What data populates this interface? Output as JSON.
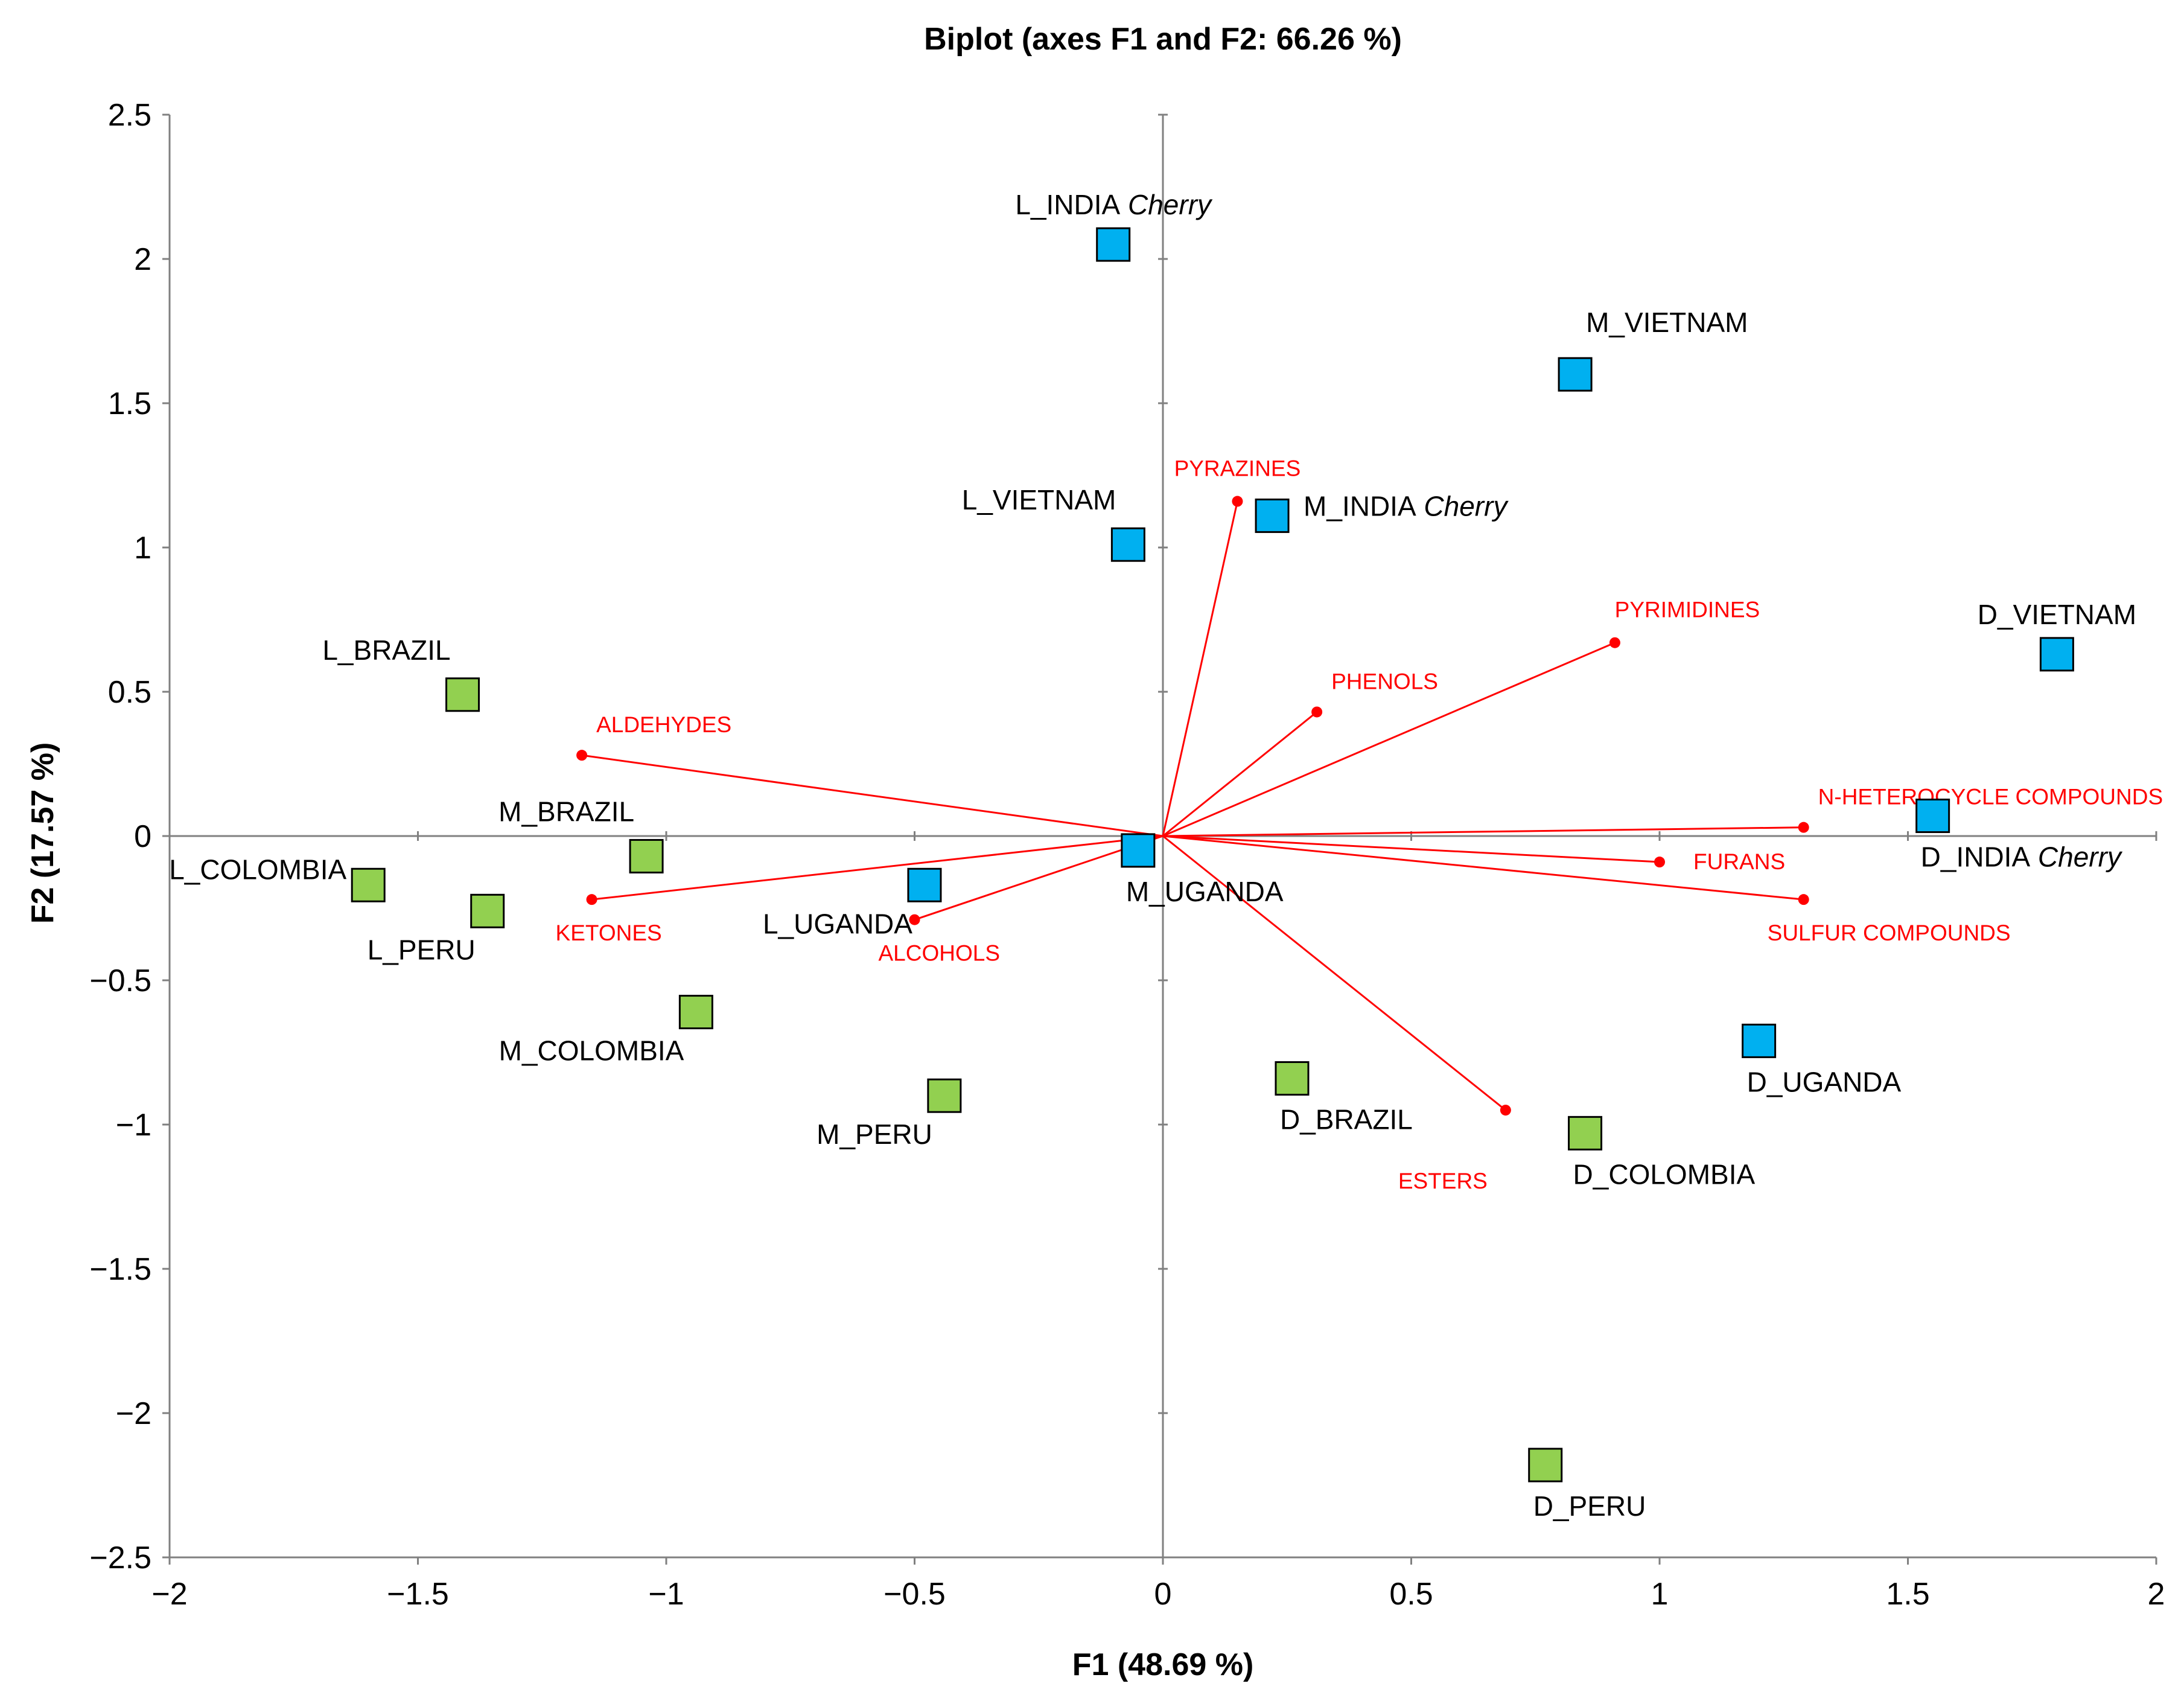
{
  "chart_data": {
    "type": "scatter",
    "title": "Biplot (axes F1 and F2: 66.26 %)",
    "xlabel": "F1 (48.69 %)",
    "ylabel": "F2 (17.57 %)",
    "xlim": [
      -2,
      2
    ],
    "ylim": [
      -2.5,
      2.5
    ],
    "x_ticks": [
      -2,
      -1.5,
      -1,
      -0.5,
      0,
      0.5,
      1,
      1.5,
      2
    ],
    "y_ticks": [
      2.5,
      2,
      1.5,
      1,
      0.5,
      0,
      -0.5,
      -1,
      -1.5,
      -2,
      -2.5
    ],
    "x_tick_labels": [
      "−2",
      "−1.5",
      "−1",
      "−0.5",
      "0",
      "0.5",
      "1",
      "1.5",
      "2"
    ],
    "y_tick_labels": [
      "2.5",
      "2",
      "1.5",
      "1",
      "0.5",
      "0",
      "−0.5",
      "−1",
      "−1.5",
      "−2",
      "−2.5"
    ],
    "grid": false,
    "colors": {
      "robusta": "#00b0f0",
      "arabica": "#92d050",
      "vector": "#ff0000",
      "axis": "#808080"
    },
    "observations": [
      {
        "label": "L_INDIA",
        "label_italic": "Cherry",
        "x": -0.1,
        "y": 2.05,
        "group": "robusta",
        "label_pos": "above"
      },
      {
        "label": "M_VIETNAM",
        "label_italic": "",
        "x": 0.83,
        "y": 1.6,
        "group": "robusta",
        "label_pos": "above-right"
      },
      {
        "label": "L_VIETNAM",
        "label_italic": "",
        "x": -0.07,
        "y": 1.01,
        "group": "robusta",
        "label_pos": "above-left"
      },
      {
        "label": "M_INDIA",
        "label_italic": "Cherry",
        "x": 0.22,
        "y": 1.11,
        "group": "robusta",
        "label_pos": "right"
      },
      {
        "label": "D_VIETNAM",
        "label_italic": "",
        "x": 1.8,
        "y": 0.63,
        "group": "robusta",
        "label_pos": "above"
      },
      {
        "label": "D_INDIA",
        "label_italic": "Cherry",
        "x": 1.55,
        "y": 0.07,
        "group": "robusta",
        "label_pos": "below-right"
      },
      {
        "label": "M_UGANDA",
        "label_italic": "",
        "x": -0.05,
        "y": -0.05,
        "group": "robusta",
        "label_pos": "below-right"
      },
      {
        "label": "L_UGANDA",
        "label_italic": "",
        "x": -0.48,
        "y": -0.17,
        "group": "robusta",
        "label_pos": "below-left"
      },
      {
        "label": "D_UGANDA",
        "label_italic": "",
        "x": 1.2,
        "y": -0.71,
        "group": "robusta",
        "label_pos": "below-right"
      },
      {
        "label": "L_BRAZIL",
        "label_italic": "",
        "x": -1.41,
        "y": 0.49,
        "group": "arabica",
        "label_pos": "above-left"
      },
      {
        "label": "M_BRAZIL",
        "label_italic": "",
        "x": -1.04,
        "y": -0.07,
        "group": "arabica",
        "label_pos": "above-left"
      },
      {
        "label": "L_COLOMBIA",
        "label_italic": "",
        "x": -1.6,
        "y": -0.17,
        "group": "arabica",
        "label_pos": "left"
      },
      {
        "label": "L_PERU",
        "label_italic": "",
        "x": -1.36,
        "y": -0.26,
        "group": "arabica",
        "label_pos": "below-left"
      },
      {
        "label": "M_COLOMBIA",
        "label_italic": "",
        "x": -0.94,
        "y": -0.61,
        "group": "arabica",
        "label_pos": "below-left"
      },
      {
        "label": "M_PERU",
        "label_italic": "",
        "x": -0.44,
        "y": -0.9,
        "group": "arabica",
        "label_pos": "below-left"
      },
      {
        "label": "D_BRAZIL",
        "label_italic": "",
        "x": 0.26,
        "y": -0.84,
        "group": "arabica",
        "label_pos": "below-right"
      },
      {
        "label": "D_COLOMBIA",
        "label_italic": "",
        "x": 0.85,
        "y": -1.03,
        "group": "arabica",
        "label_pos": "below-right"
      },
      {
        "label": "D_PERU",
        "label_italic": "",
        "x": 0.77,
        "y": -2.18,
        "group": "arabica",
        "label_pos": "below-right"
      }
    ],
    "variables": [
      {
        "label": "PYRAZINES",
        "x": 0.15,
        "y": 1.16,
        "label_pos": "above"
      },
      {
        "label": "PYRIMIDINES",
        "x": 0.91,
        "y": 0.67,
        "label_pos": "above"
      },
      {
        "label": "PHENOLS",
        "x": 0.31,
        "y": 0.43,
        "label_pos": "above-right"
      },
      {
        "label": "N-HETEROCYCLE COMPOUNDS",
        "x": 1.29,
        "y": 0.03,
        "label_pos": "above-right"
      },
      {
        "label": "FURANS",
        "x": 1.0,
        "y": -0.09,
        "label_pos": "right"
      },
      {
        "label": "SULFUR COMPOUNDS",
        "x": 1.29,
        "y": -0.22,
        "label_pos": "below-right"
      },
      {
        "label": "ESTERS",
        "x": 0.69,
        "y": -0.95,
        "label_pos": "below-left"
      },
      {
        "label": "ALDEHYDES",
        "x": -1.17,
        "y": 0.28,
        "label_pos": "above-right"
      },
      {
        "label": "KETONES",
        "x": -1.15,
        "y": -0.22,
        "label_pos": "below-right"
      },
      {
        "label": "ALCOHOLS",
        "x": -0.5,
        "y": -0.29,
        "label_pos": "below-right"
      }
    ]
  }
}
